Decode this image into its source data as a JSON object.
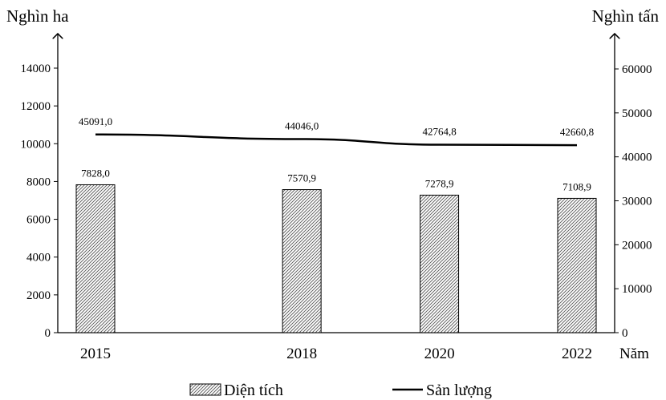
{
  "chart_data": {
    "type": "bar-line combo",
    "categories": [
      "2015",
      "2018",
      "2020",
      "2022"
    ],
    "series": [
      {
        "name": "Diện tích",
        "kind": "bar",
        "axis": "left",
        "values": [
          7828.0,
          7570.9,
          7278.9,
          7108.9
        ],
        "labels": [
          "7828,0",
          "7570,9",
          "7278,9",
          "7108,9"
        ]
      },
      {
        "name": "Sản lượng",
        "kind": "line",
        "axis": "right",
        "values": [
          45091.0,
          44046.0,
          42764.8,
          42660.8
        ],
        "labels": [
          "45091,0",
          "44046,0",
          "42764,8",
          "42660,8"
        ]
      }
    ],
    "y_left": {
      "title": "Nghìn ha",
      "ylim": [
        0,
        14000
      ],
      "ticks": [
        "0",
        "2000",
        "4000",
        "6000",
        "8000",
        "10000",
        "12000",
        "14000"
      ]
    },
    "y_right": {
      "title": "Nghìn tấn",
      "ylim": [
        0,
        60000
      ],
      "ticks": [
        "0",
        "10000",
        "20000",
        "30000",
        "40000",
        "50000",
        "60000"
      ]
    },
    "xlabel": "Năm",
    "legend_position": "bottom-center",
    "grid": false,
    "bar_fill": "hatched"
  }
}
